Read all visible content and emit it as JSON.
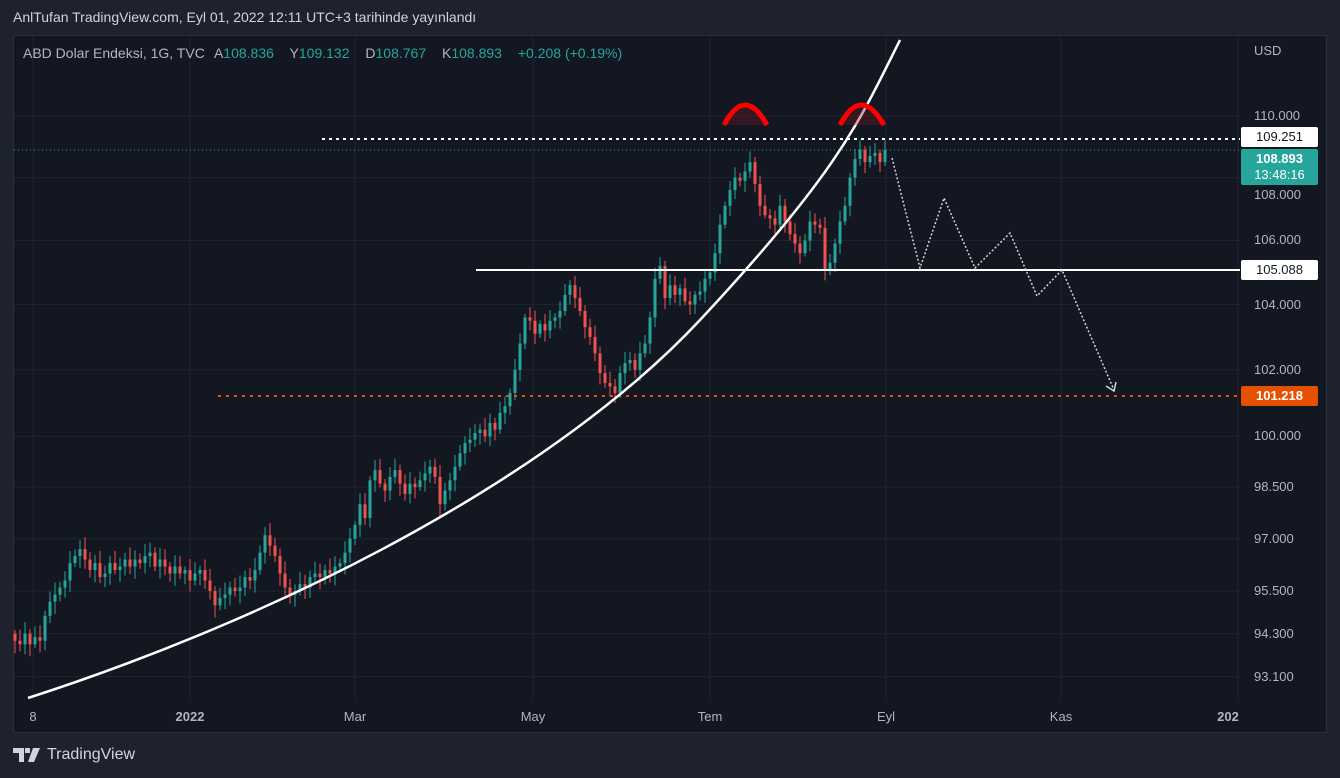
{
  "header": {
    "published": "AnlTufan TradingView.com, Eyl 01, 2022 12:11 UTC+3 tarihinde yayınlandı"
  },
  "legend": {
    "symbol": "ABD Dolar Endeksi, 1G, TVC",
    "o_label": "A",
    "o": "108.836",
    "h_label": "Y",
    "h": "109.132",
    "l_label": "D",
    "l": "108.767",
    "c_label": "K",
    "c": "108.893",
    "change": "+0.208 (+0.19%)"
  },
  "axis": {
    "currency": "USD",
    "y_ticks": [
      "110.000",
      "108.000",
      "106.000",
      "104.000",
      "102.000",
      "100.000",
      "98.500",
      "97.000",
      "95.500",
      "94.300",
      "93.100"
    ],
    "x_ticks": [
      "8",
      "2022",
      "Mar",
      "May",
      "Tem",
      "Eyl",
      "Kas",
      "202"
    ]
  },
  "labels": {
    "resistance": "109.251",
    "current_price": "108.893",
    "countdown": "13:48:16",
    "neckline": "105.088",
    "target": "101.218"
  },
  "colors": {
    "up": "#26a69a",
    "down": "#ef5350",
    "target": "#e65100",
    "arc": "#ff0000"
  },
  "footer": {
    "brand": "TradingView"
  },
  "chart_data": {
    "type": "candlestick",
    "title": "ABD Dolar Endeksi, 1G, TVC",
    "scale": "log",
    "ylim": [
      92.5,
      112
    ],
    "first_open": 94.3,
    "closes": [
      94.1,
      94.0,
      94.3,
      94.0,
      94.2,
      94.1,
      94.8,
      95.2,
      95.4,
      95.6,
      95.8,
      96.3,
      96.5,
      96.7,
      96.4,
      96.1,
      96.3,
      95.9,
      96.0,
      96.3,
      96.1,
      96.2,
      96.4,
      96.2,
      96.4,
      96.3,
      96.5,
      96.6,
      96.2,
      96.4,
      96.2,
      96.0,
      96.2,
      96.0,
      96.1,
      95.8,
      96.0,
      96.1,
      95.8,
      95.5,
      95.1,
      95.3,
      95.4,
      95.6,
      95.5,
      95.6,
      95.9,
      95.8,
      96.1,
      96.6,
      97.1,
      96.8,
      96.5,
      96.0,
      95.6,
      95.4,
      95.5,
      95.7,
      95.6,
      95.9,
      96.0,
      95.9,
      96.1,
      96.0,
      96.2,
      96.3,
      96.6,
      97.0,
      97.4,
      98.0,
      97.6,
      98.7,
      99.0,
      98.6,
      98.4,
      98.8,
      99.0,
      98.6,
      98.3,
      98.6,
      98.5,
      98.7,
      98.9,
      99.1,
      98.8,
      98.0,
      98.4,
      98.7,
      99.1,
      99.5,
      99.8,
      99.9,
      100.1,
      100.2,
      100.0,
      100.4,
      100.2,
      100.7,
      100.9,
      101.3,
      102.0,
      102.8,
      103.6,
      103.5,
      103.1,
      103.4,
      103.2,
      103.5,
      103.6,
      103.8,
      104.3,
      104.6,
      104.2,
      103.8,
      103.3,
      103.0,
      102.5,
      101.9,
      101.6,
      101.5,
      101.3,
      101.9,
      102.2,
      102.3,
      102.0,
      102.5,
      102.8,
      103.6,
      104.8,
      105.2,
      104.2,
      104.6,
      104.3,
      104.5,
      104.1,
      104.0,
      104.3,
      104.4,
      104.8,
      105.0,
      105.6,
      106.5,
      107.1,
      107.6,
      108.0,
      107.9,
      108.2,
      108.5,
      107.8,
      107.1,
      106.8,
      106.7,
      106.5,
      107.1,
      106.6,
      106.2,
      105.9,
      105.6,
      106.0,
      106.6,
      106.5,
      106.4,
      105.1,
      105.3,
      105.9,
      106.6,
      107.1,
      108.0,
      108.6,
      108.9,
      108.5,
      108.7,
      108.8,
      108.5,
      108.893
    ],
    "horizontal_levels": [
      109.251,
      108.893,
      105.088,
      101.218
    ],
    "annotations": [
      "double top arcs",
      "parabolic support curve",
      "projected decline path to 101.218"
    ]
  }
}
